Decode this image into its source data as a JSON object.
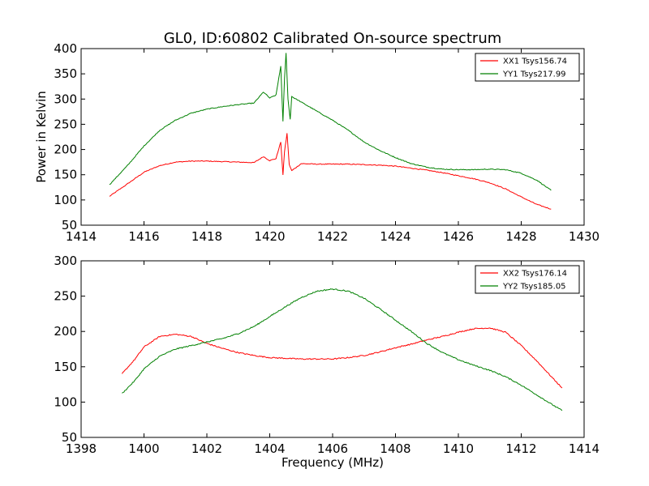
{
  "figure": {
    "title": "GL0, ID:60802 Calibrated On-source spectrum",
    "ylabel": "Power in Kelvin",
    "xlabel": "Frequency (MHz)"
  },
  "chart_data": [
    {
      "type": "line",
      "title": "GL0, ID:60802 Calibrated On-source spectrum",
      "xlabel": "",
      "ylabel": "Power in Kelvin",
      "xlim": [
        1414,
        1430
      ],
      "ylim": [
        50,
        400
      ],
      "xticks": [
        1414,
        1416,
        1418,
        1420,
        1422,
        1424,
        1426,
        1428,
        1430
      ],
      "yticks": [
        50,
        100,
        150,
        200,
        250,
        300,
        350,
        400
      ],
      "legend": "top-right",
      "series": [
        {
          "name": "XX1 Tsys156.74",
          "color": "#ff0000",
          "x": [
            1414.9,
            1415.5,
            1416.0,
            1416.5,
            1417.0,
            1417.5,
            1418.0,
            1418.5,
            1419.0,
            1419.5,
            1419.8,
            1420.0,
            1420.2,
            1420.35,
            1420.42,
            1420.47,
            1420.55,
            1420.62,
            1420.7,
            1421.0,
            1421.5,
            1422.0,
            1422.5,
            1423.0,
            1423.5,
            1424.0,
            1424.5,
            1425.0,
            1425.5,
            1426.0,
            1426.5,
            1427.0,
            1427.5,
            1428.0,
            1428.5,
            1428.95
          ],
          "y": [
            107,
            133,
            155,
            168,
            175,
            177,
            177,
            176,
            175,
            174,
            186,
            178,
            182,
            215,
            150,
            195,
            232,
            170,
            158,
            172,
            171,
            171,
            171,
            170,
            169,
            167,
            163,
            159,
            154,
            148,
            142,
            134,
            122,
            106,
            91,
            82
          ]
        },
        {
          "name": "YY1 Tsys217.99",
          "color": "#008000",
          "x": [
            1414.9,
            1415.5,
            1416.0,
            1416.5,
            1417.0,
            1417.5,
            1418.0,
            1418.5,
            1419.0,
            1419.5,
            1419.8,
            1420.0,
            1420.2,
            1420.35,
            1420.42,
            1420.47,
            1420.52,
            1420.58,
            1420.65,
            1420.7,
            1421.0,
            1421.5,
            1422.0,
            1422.5,
            1423.0,
            1423.5,
            1424.0,
            1424.5,
            1425.0,
            1425.5,
            1426.0,
            1426.5,
            1427.0,
            1427.5,
            1428.0,
            1428.5,
            1428.95
          ],
          "y": [
            130,
            170,
            207,
            238,
            258,
            272,
            280,
            285,
            289,
            292,
            314,
            302,
            308,
            365,
            255,
            340,
            392,
            300,
            260,
            305,
            294,
            276,
            258,
            238,
            215,
            198,
            184,
            172,
            165,
            161,
            160,
            160,
            161,
            160,
            153,
            139,
            119
          ]
        }
      ]
    },
    {
      "type": "line",
      "title": "",
      "xlabel": "Frequency (MHz)",
      "ylabel": "",
      "xlim": [
        1398,
        1414
      ],
      "ylim": [
        50,
        300
      ],
      "xticks": [
        1398,
        1400,
        1402,
        1404,
        1406,
        1408,
        1410,
        1412,
        1414
      ],
      "yticks": [
        50,
        100,
        150,
        200,
        250,
        300
      ],
      "legend": "top-right",
      "series": [
        {
          "name": "XX2 Tsys176.14",
          "color": "#ff0000",
          "x": [
            1399.3,
            1399.7,
            1400.0,
            1400.5,
            1401.0,
            1401.5,
            1402.0,
            1402.5,
            1403.0,
            1403.5,
            1404.0,
            1404.5,
            1405.0,
            1405.5,
            1406.0,
            1406.5,
            1407.0,
            1407.5,
            1408.0,
            1408.5,
            1409.0,
            1409.5,
            1410.0,
            1410.5,
            1411.0,
            1411.5,
            1412.0,
            1412.5,
            1413.0,
            1413.3
          ],
          "y": [
            140,
            160,
            178,
            193,
            196,
            193,
            183,
            176,
            170,
            166,
            163,
            162,
            161,
            161,
            161,
            163,
            166,
            171,
            177,
            182,
            188,
            193,
            199,
            204,
            205,
            199,
            180,
            158,
            134,
            120
          ]
        },
        {
          "name": "YY2 Tsys185.05",
          "color": "#008000",
          "x": [
            1399.3,
            1399.7,
            1400.0,
            1400.5,
            1401.0,
            1401.5,
            1402.0,
            1402.5,
            1403.0,
            1403.5,
            1404.0,
            1404.5,
            1405.0,
            1405.5,
            1406.0,
            1406.5,
            1407.0,
            1407.5,
            1408.0,
            1408.5,
            1409.0,
            1409.5,
            1410.0,
            1410.5,
            1411.0,
            1411.5,
            1412.0,
            1412.5,
            1413.0,
            1413.3
          ],
          "y": [
            112,
            130,
            147,
            165,
            175,
            180,
            185,
            190,
            197,
            207,
            221,
            235,
            248,
            257,
            260,
            257,
            247,
            232,
            216,
            200,
            183,
            170,
            160,
            152,
            145,
            136,
            124,
            110,
            96,
            88
          ]
        }
      ]
    }
  ]
}
